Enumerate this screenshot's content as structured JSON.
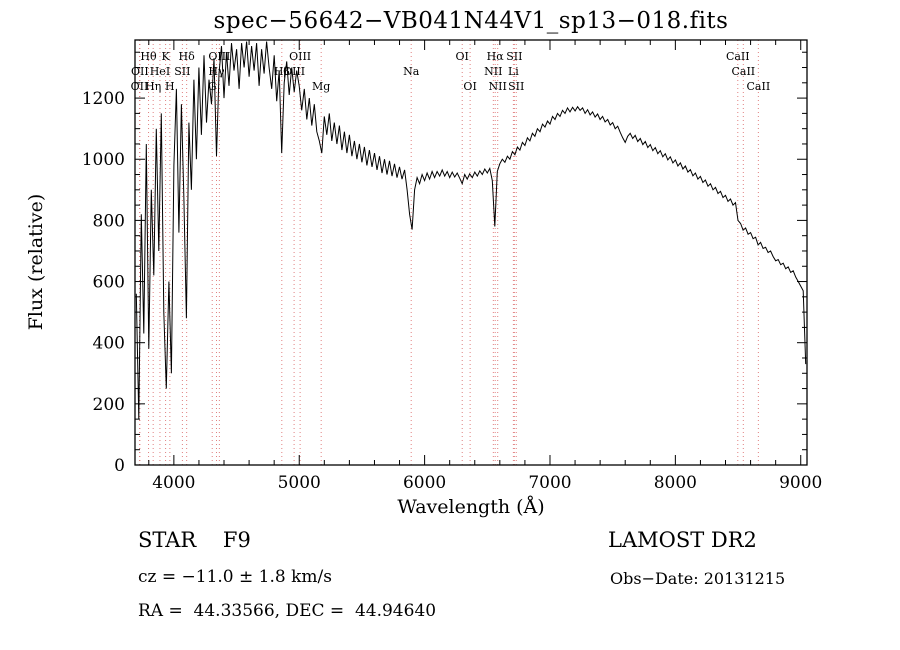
{
  "annotations": {
    "class_label": "STAR    F9",
    "survey": "LAMOST DR2",
    "cz": "cz = −11.0 ± 1.8 km/s",
    "obs_date": "Obs−Date: 20131215",
    "coords": "RA =  44.33566, DEC =  44.94640"
  },
  "chart_data": {
    "type": "line",
    "title": "spec−56642−VB041N44V1_sp13−018.fits",
    "xlabel": "Wavelength (Å)",
    "ylabel": "Flux (relative)",
    "xlim": [
      3690,
      9050
    ],
    "ylim": [
      0,
      1390
    ],
    "xticks": [
      4000,
      5000,
      6000,
      7000,
      8000,
      9000
    ],
    "yticks": [
      0,
      200,
      400,
      600,
      800,
      1000,
      1200
    ],
    "grid": false,
    "legend": "none",
    "line_color": "#000000",
    "marker_color": "#e08080",
    "x_start": 3700,
    "x_step": 20,
    "flux": [
      560,
      150,
      820,
      430,
      1050,
      380,
      900,
      620,
      1100,
      700,
      1150,
      500,
      250,
      600,
      300,
      980,
      1230,
      760,
      1180,
      870,
      480,
      1120,
      900,
      1260,
      1000,
      1300,
      1080,
      1340,
      1120,
      1260,
      1180,
      1330,
      1010,
      1280,
      1370,
      1200,
      1350,
      1240,
      1380,
      1290,
      1360,
      1230,
      1380,
      1300,
      1385,
      1270,
      1370,
      1290,
      1380,
      1240,
      1360,
      1280,
      1385,
      1300,
      1230,
      1340,
      1190,
      1290,
      1020,
      1250,
      1320,
      1210,
      1300,
      1220,
      1290,
      1240,
      1160,
      1230,
      1130,
      1200,
      1110,
      1180,
      1090,
      1060,
      1020,
      1140,
      1080,
      1150,
      1060,
      1120,
      1050,
      1110,
      1030,
      1090,
      1020,
      1080,
      1010,
      1060,
      1000,
      1050,
      990,
      1040,
      980,
      1030,
      975,
      1020,
      965,
      1010,
      955,
      1000,
      950,
      995,
      945,
      985,
      940,
      975,
      935,
      965,
      900,
      820,
      770,
      900,
      940,
      920,
      950,
      930,
      955,
      935,
      960,
      940,
      960,
      945,
      965,
      945,
      960,
      940,
      958,
      942,
      955,
      938,
      920,
      950,
      935,
      952,
      940,
      958,
      945,
      962,
      950,
      968,
      955,
      970,
      930,
      780,
      960,
      985,
      1000,
      990,
      1010,
      1000,
      1025,
      1015,
      1040,
      1030,
      1055,
      1045,
      1070,
      1060,
      1085,
      1075,
      1100,
      1090,
      1115,
      1105,
      1125,
      1115,
      1140,
      1130,
      1150,
      1140,
      1160,
      1150,
      1168,
      1155,
      1170,
      1158,
      1172,
      1160,
      1168,
      1150,
      1162,
      1145,
      1155,
      1138,
      1148,
      1130,
      1140,
      1122,
      1130,
      1112,
      1120,
      1100,
      1108,
      1088,
      1070,
      1055,
      1075,
      1085,
      1068,
      1078,
      1058,
      1068,
      1048,
      1058,
      1038,
      1048,
      1028,
      1038,
      1018,
      1028,
      1008,
      1018,
      998,
      1008,
      988,
      998,
      978,
      988,
      968,
      978,
      958,
      966,
      946,
      955,
      935,
      944,
      924,
      932,
      912,
      920,
      900,
      908,
      888,
      895,
      875,
      882,
      862,
      870,
      850,
      858,
      800,
      790,
      768,
      775,
      755,
      760,
      740,
      745,
      720,
      728,
      708,
      712,
      695,
      700,
      682,
      668,
      672,
      655,
      660,
      642,
      648,
      630,
      635,
      615,
      600,
      585,
      570,
      330
    ],
    "spectral_lines": [
      {
        "label": "Hθ",
        "wl": 3798,
        "row": 0
      },
      {
        "label": "K",
        "wl": 3934,
        "row": 0
      },
      {
        "label": "Hδ",
        "wl": 4102,
        "row": 0
      },
      {
        "label": "OIII",
        "wl": 4363,
        "row": 0
      },
      {
        "label": "OIII",
        "wl": 5007,
        "row": 0
      },
      {
        "label": "OI",
        "wl": 6300,
        "row": 0
      },
      {
        "label": "Hα",
        "wl": 6563,
        "row": 0
      },
      {
        "label": "SII",
        "wl": 6716,
        "row": 0
      },
      {
        "label": "CaII",
        "wl": 8498,
        "row": 0
      },
      {
        "label": "OII",
        "wl": 3729,
        "row": 1
      },
      {
        "label": "HeI",
        "wl": 3889,
        "row": 1
      },
      {
        "label": "SII",
        "wl": 4068,
        "row": 1
      },
      {
        "label": "Hγ",
        "wl": 4340,
        "row": 1
      },
      {
        "label": "Hβ",
        "wl": 4861,
        "row": 1
      },
      {
        "label": "OIII",
        "wl": 4959,
        "row": 1
      },
      {
        "label": "Na",
        "wl": 5893,
        "row": 1
      },
      {
        "label": "NII",
        "wl": 6548,
        "row": 1
      },
      {
        "label": "Li",
        "wl": 6708,
        "row": 1
      },
      {
        "label": "CaII",
        "wl": 8542,
        "row": 1
      },
      {
        "label": "OII",
        "wl": 3726,
        "row": 2
      },
      {
        "label": "Hη",
        "wl": 3835,
        "row": 2
      },
      {
        "label": "H",
        "wl": 3968,
        "row": 2
      },
      {
        "label": "G",
        "wl": 4306,
        "row": 2
      },
      {
        "label": "Mg",
        "wl": 5175,
        "row": 2
      },
      {
        "label": "OI",
        "wl": 6363,
        "row": 2
      },
      {
        "label": "NII",
        "wl": 6583,
        "row": 2
      },
      {
        "label": "SII",
        "wl": 6731,
        "row": 2
      },
      {
        "label": "CaII",
        "wl": 8662,
        "row": 2
      }
    ]
  }
}
